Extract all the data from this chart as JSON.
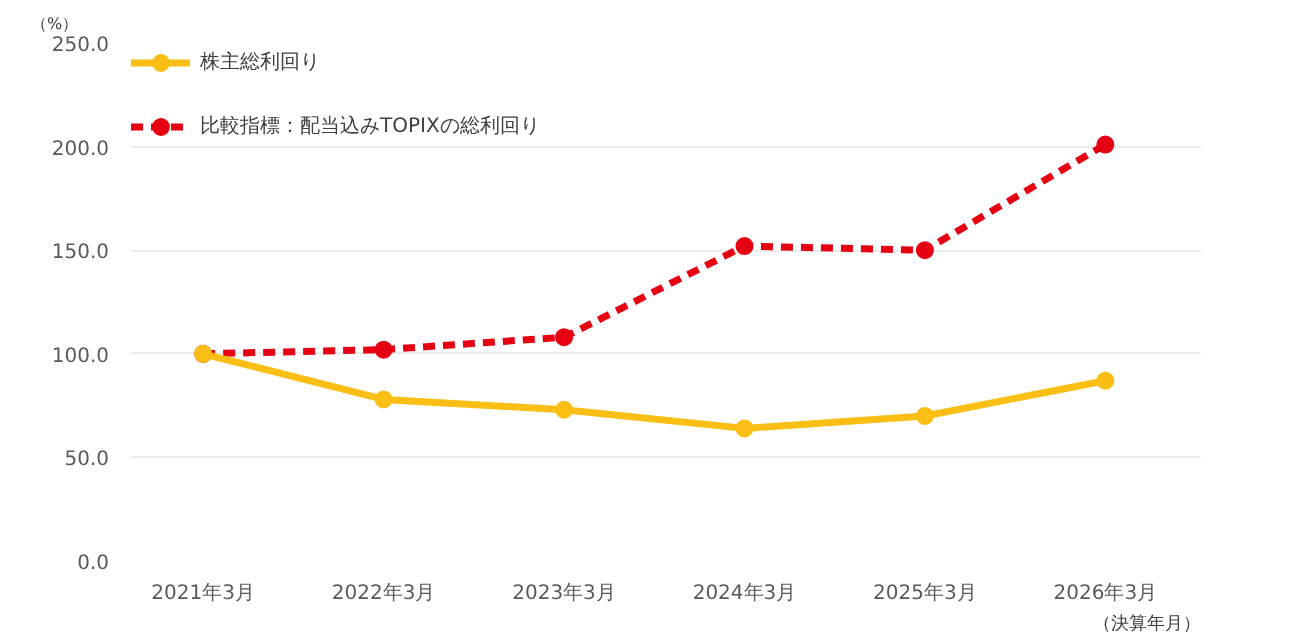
{
  "chart_data": {
    "type": "line",
    "xlabel": "（決算年月）",
    "ylabel": "（%）",
    "categories": [
      "2021年3月",
      "2022年3月",
      "2023年3月",
      "2024年3月",
      "2025年3月",
      "2026年3月"
    ],
    "series": [
      {
        "name": "株主総利回り",
        "color": "#fabe14",
        "values": [
          100,
          78,
          73,
          64,
          70,
          87
        ],
        "line_style": "solid"
      },
      {
        "name": "比較指標：配当込みTOPIXの総利回り",
        "color": "#e60012",
        "values": [
          100,
          102,
          108,
          152,
          150,
          201
        ],
        "line_style": "dashed"
      }
    ],
    "ylim": [
      0,
      250
    ],
    "yticks": [
      {
        "value": 0,
        "label": "0.0"
      },
      {
        "value": 50,
        "label": "50.0"
      },
      {
        "value": 100,
        "label": "100.0"
      },
      {
        "value": 150,
        "label": "150.0"
      },
      {
        "value": 200,
        "label": "200.0"
      },
      {
        "value": 250,
        "label": "250.0"
      }
    ],
    "grid": "y",
    "legend": "top left",
    "marker": "circle"
  }
}
